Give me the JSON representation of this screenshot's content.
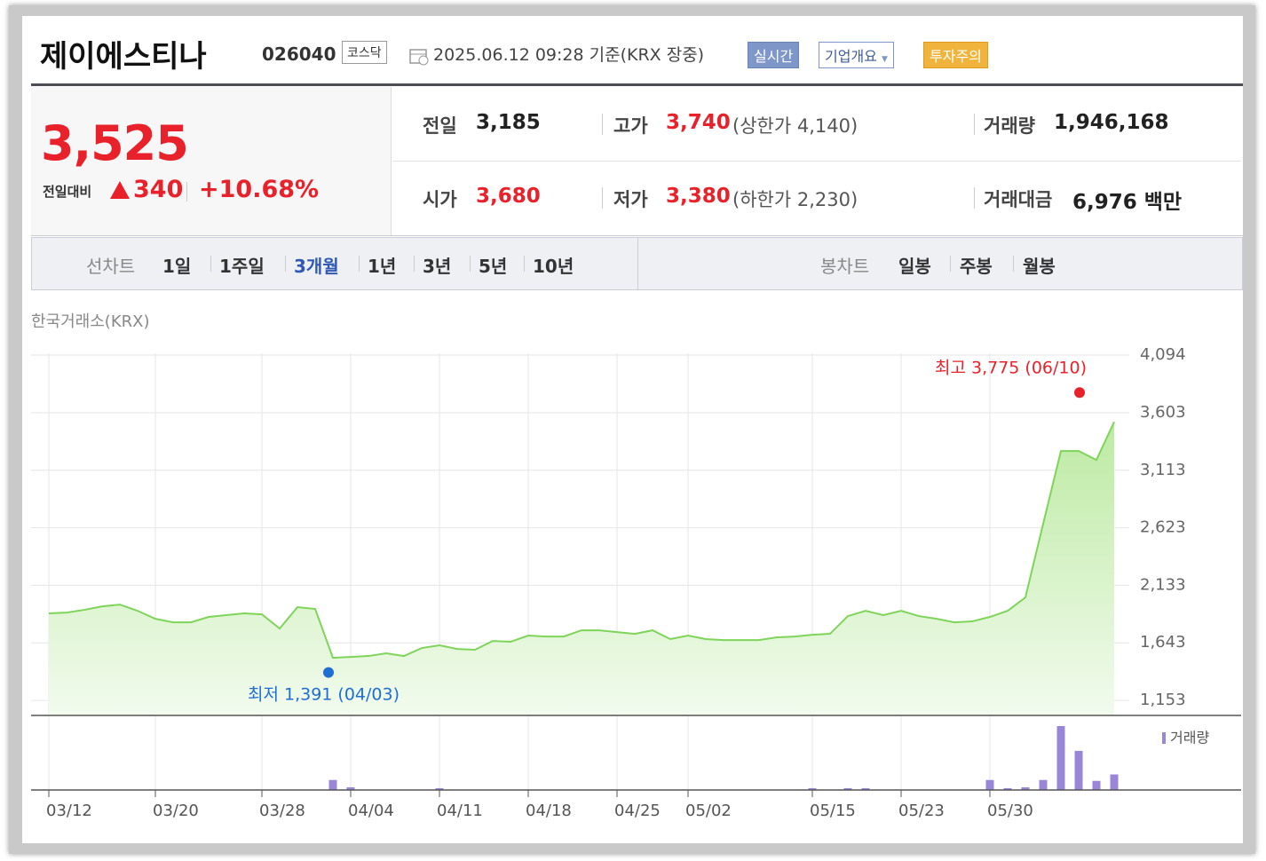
{
  "header": {
    "title": "제이에스티나",
    "code": "026040",
    "market": "코스닥",
    "timestamp": "2025.06.12 09:28 기준(KRX 장중)",
    "buttons": [
      "실시간",
      "기업개요",
      "투자주의"
    ]
  },
  "quote": {
    "price": "3,525",
    "change_label": "전일대비",
    "change": "340",
    "change_pct": "+10.68%",
    "items": [
      {
        "label": "전일",
        "value": "3,185"
      },
      {
        "label": "고가",
        "value": "3,740",
        "note": "(상한가 4,140)"
      },
      {
        "label": "거래량",
        "value": "1,946,168"
      },
      {
        "label": "시가",
        "value": "3,680"
      },
      {
        "label": "저가",
        "value": "3,380",
        "note": "(하한가 2,230)"
      },
      {
        "label": "거래대금",
        "value": "6,976 백만"
      }
    ]
  },
  "tabs": {
    "line_label": "선차트",
    "line_periods": [
      "1일",
      "1주일",
      "3개월",
      "1년",
      "3년",
      "5년",
      "10년"
    ],
    "active": 2,
    "candle_label": "봉차트",
    "candle_periods": [
      "일봉",
      "주봉",
      "월봉"
    ]
  },
  "source": "한국거래소(KRX)",
  "chart_data": {
    "type": "line",
    "color": "#7fd45a",
    "grid": true,
    "categories": [
      "03/12",
      null,
      null,
      null,
      null,
      null,
      "03/20",
      null,
      null,
      null,
      null,
      null,
      "03/28",
      null,
      null,
      null,
      null,
      "04/04",
      null,
      null,
      null,
      null,
      "04/11",
      null,
      null,
      null,
      null,
      "04/18",
      null,
      null,
      null,
      null,
      "04/25",
      null,
      null,
      null,
      "05/02",
      null,
      null,
      null,
      null,
      null,
      null,
      "05/15",
      null,
      null,
      null,
      null,
      "05/23",
      null,
      null,
      null,
      null,
      "05/30",
      null,
      null,
      null,
      null,
      null,
      null,
      null
    ],
    "values": [
      1894,
      1901,
      1924,
      1954,
      1969,
      1916,
      1848,
      1818,
      1818,
      1864,
      1879,
      1894,
      1886,
      1765,
      1947,
      1932,
      1516,
      1523,
      1531,
      1554,
      1531,
      1599,
      1622,
      1591,
      1584,
      1659,
      1652,
      1705,
      1697,
      1697,
      1750,
      1750,
      1735,
      1720,
      1750,
      1675,
      1705,
      1675,
      1667,
      1667,
      1667,
      1690,
      1697,
      1712,
      1720,
      1871,
      1916,
      1879,
      1916,
      1871,
      1848,
      1818,
      1826,
      1864,
      1916,
      2030,
      2657,
      3277,
      3277,
      3201,
      3525
    ],
    "ylim": [
      1025,
      4094
    ],
    "yticks": [
      {
        "value": 1153,
        "label": "1,153"
      },
      {
        "value": 1643,
        "label": "1,643"
      },
      {
        "value": 2133,
        "label": "2,133"
      },
      {
        "value": 2623,
        "label": "2,623"
      },
      {
        "value": 3113,
        "label": "3,113"
      },
      {
        "value": 3603,
        "label": "3,603"
      },
      {
        "value": 4094,
        "label": "4,094"
      }
    ],
    "annotations": [
      {
        "text": "최고 3,775 (06/10)",
        "value": 3775,
        "color": "#e8212a"
      },
      {
        "text": "최저 1,391 (04/03)",
        "value": 1391,
        "color": "#1f6ed4"
      }
    ],
    "volume": {
      "name": "거래량",
      "color": "#9a86d6",
      "values": [
        50000,
        50000,
        50000,
        50000,
        50000,
        50000,
        50000,
        50000,
        50000,
        50000,
        50000,
        50000,
        50000,
        50000,
        50000,
        50000,
        1250000,
        340000,
        50000,
        50000,
        50000,
        50000,
        230000,
        50000,
        50000,
        50000,
        50000,
        50000,
        50000,
        50000,
        50000,
        50000,
        50000,
        50000,
        50000,
        50000,
        50000,
        50000,
        50000,
        50000,
        50000,
        50000,
        50000,
        230000,
        50000,
        230000,
        230000,
        50000,
        50000,
        50000,
        50000,
        50000,
        50000,
        1250000,
        230000,
        340000,
        1250000,
        8000000,
        4900000,
        1140000,
        1946168
      ]
    }
  }
}
